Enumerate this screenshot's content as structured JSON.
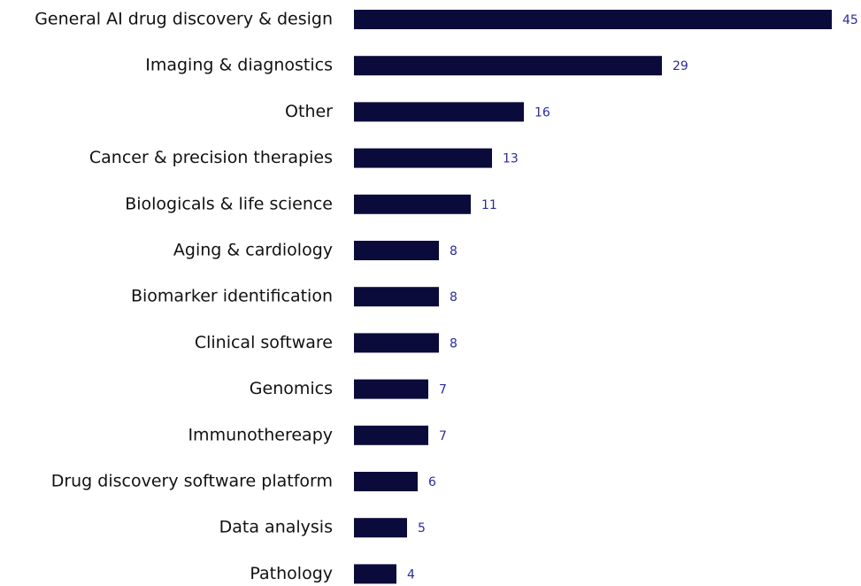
{
  "chart_data": {
    "type": "bar",
    "orientation": "horizontal",
    "categories": [
      "General AI drug discovery & design",
      "Imaging & diagnostics",
      "Other",
      "Cancer & precision therapies",
      "Biologicals & life science",
      "Aging & cardiology",
      "Biomarker identification",
      "Clinical software",
      "Genomics",
      "Immunothereapy",
      "Drug discovery software platform",
      "Data analysis",
      "Pathology"
    ],
    "values": [
      45,
      29,
      16,
      13,
      11,
      8,
      8,
      8,
      7,
      7,
      6,
      5,
      4
    ],
    "color": "#0b0b3b",
    "value_label_color": "#2b2b9c",
    "grid": false
  }
}
